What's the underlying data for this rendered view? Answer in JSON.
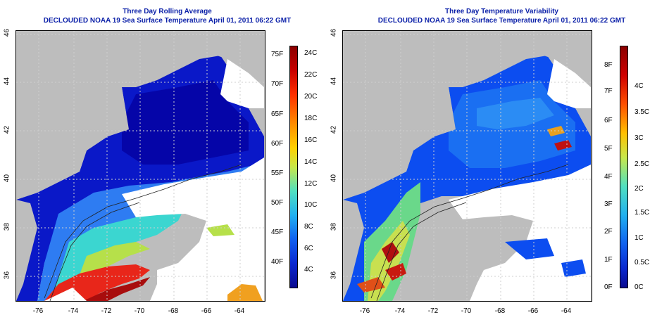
{
  "left_panel": {
    "title": "Three Day Rolling Average",
    "subtitle": "DECLOUDED NOAA 19 Sea Surface Temperature April 01, 2011 06:22 GMT",
    "colorbar_c": [
      "24C",
      "22C",
      "20C",
      "18C",
      "16C",
      "14C",
      "12C",
      "10C",
      "8C",
      "6C",
      "4C"
    ],
    "colorbar_f": [
      "75F",
      "70F",
      "65F",
      "60F",
      "55F",
      "50F",
      "45F",
      "40F"
    ]
  },
  "right_panel": {
    "title": "Three Day Temperature Variability",
    "subtitle": "DECLOUDED NOAA 19 Sea Surface Temperature April 01, 2011 06:22 GMT",
    "colorbar_c": [
      "4C",
      "3.5C",
      "3C",
      "2.5C",
      "2C",
      "1.5C",
      "1C",
      "0.5C",
      "0C"
    ],
    "colorbar_f": [
      "8F",
      "7F",
      "6F",
      "5F",
      "4F",
      "3F",
      "2F",
      "1F",
      "0F"
    ]
  },
  "axes": {
    "x_ticks": [
      "-76",
      "-74",
      "-72",
      "-70",
      "-68",
      "-66",
      "-64"
    ],
    "y_ticks": [
      "46",
      "44",
      "42",
      "40",
      "38",
      "36"
    ]
  },
  "colors": {
    "title": "#0a1fa8",
    "land": "#bdbdbd",
    "cloud": "#ffffff"
  }
}
